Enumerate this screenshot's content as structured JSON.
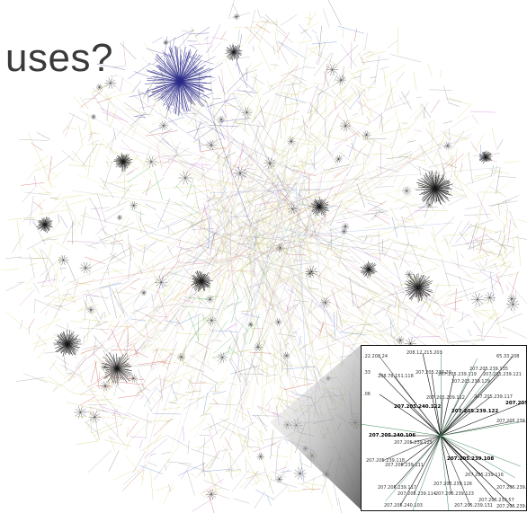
{
  "title": "uses?",
  "colors": {
    "background": "#ffffff",
    "title_text": "#3a3a3a",
    "edge_palette": [
      "#8a8a8a",
      "#c8c25a",
      "#d8d36b",
      "#9c9c9c",
      "#2b2b8a",
      "#3a6fd0",
      "#2f9b3c",
      "#c0392b",
      "#b85fc7",
      "#d27fa0",
      "#5a5a5a"
    ]
  },
  "inset": {
    "labels": [
      {
        "text": ".22.208.24",
        "bold": false
      },
      {
        "text": "208.12.215.203",
        "bold": false
      },
      {
        "text": "65.33.208",
        "bold": false
      },
      {
        "text": ".33",
        "bold": false
      },
      {
        "text": "207.205.239.20",
        "bold": false
      },
      {
        "text": "207.205.239.135",
        "bold": false
      },
      {
        "text": "208.78.151.118",
        "bold": false
      },
      {
        "text": "207.205.239.119",
        "bold": false
      },
      {
        "text": "207.205.239.121",
        "bold": false
      },
      {
        "text": "207.205.239.129",
        "bold": false
      },
      {
        "text": ".06",
        "bold": false
      },
      {
        "text": "207.205.239.112",
        "bold": false
      },
      {
        "text": "207.205.239.117",
        "bold": false
      },
      {
        "text": "207.205.240.122",
        "bold": true
      },
      {
        "text": "207.205.239.122",
        "bold": true
      },
      {
        "text": "207.205.239.174",
        "bold": false
      },
      {
        "text": "207.205.240.106",
        "bold": true
      },
      {
        "text": "207.205.239.125",
        "bold": false
      },
      {
        "text": "207.205.239.118",
        "bold": false
      },
      {
        "text": "207.205.239.111",
        "bold": false
      },
      {
        "text": "207.205.239.108",
        "bold": true
      },
      {
        "text": "207.205.239.117",
        "bold": false
      },
      {
        "text": "207.205.239.126",
        "bold": false
      },
      {
        "text": "207.205.239.116",
        "bold": false
      },
      {
        "text": "207.205.239.114",
        "bold": false
      },
      {
        "text": "207.205.239.155",
        "bold": false
      },
      {
        "text": "207.205.240.103",
        "bold": false
      },
      {
        "text": "207.205.239.123",
        "bold": false
      },
      {
        "text": "207.205.239.45",
        "bold": false
      },
      {
        "text": "207.205.239.57",
        "bold": false
      },
      {
        "text": "207.205.239.131",
        "bold": false
      },
      {
        "text": "207.205.239.127",
        "bold": true
      }
    ]
  }
}
